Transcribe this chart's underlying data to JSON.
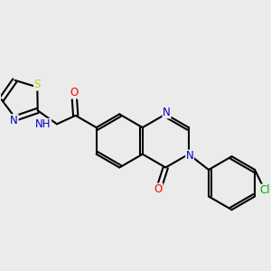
{
  "bg_color": "#ebebeb",
  "bond_color": "#000000",
  "lw": 1.5,
  "fs": 8.5,
  "atom_colors": {
    "O": "#ff0000",
    "N": "#0000cc",
    "S": "#cccc00",
    "Cl": "#00aa00",
    "H": "#000000"
  }
}
